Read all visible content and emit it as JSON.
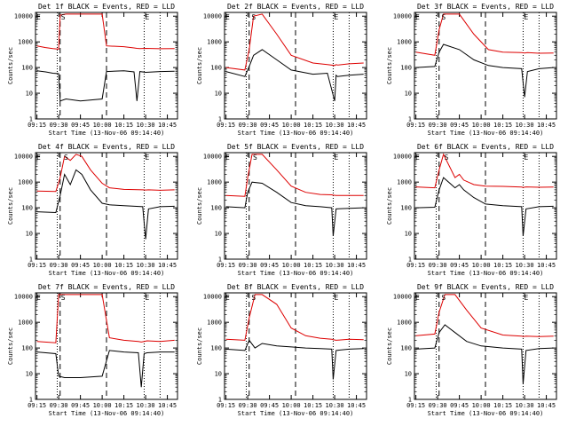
{
  "figure": {
    "common": {
      "title_suffix": "BLACK = Events, RED = LLD",
      "xlabel": "Start Time (13-Nov-06 09:14:40)",
      "ylabel": "Counts/sec",
      "x_tick_labels": [
        "09:15",
        "09:30",
        "09:45",
        "10:00",
        "10:15",
        "10:30",
        "10:45"
      ],
      "y_tick_labels": [
        "1",
        "10",
        "100",
        "1000",
        "10000"
      ],
      "marker_E": "E",
      "marker_S": "S",
      "colors": {
        "events": "#000000",
        "lld": "#dd0000"
      }
    }
  },
  "chart_data": [
    {
      "type": "line",
      "title": "Det 1f BLACK = Events, RED = LLD",
      "xlabel": "Start Time (13-Nov-06 09:14:40)",
      "ylabel": "Counts/sec",
      "y_scale": "log",
      "ylim": [
        1,
        12000
      ],
      "x": [
        "09:15",
        "09:21",
        "09:26",
        "09:30",
        "09:31",
        "09:35",
        "09:45",
        "10:00",
        "10:03",
        "10:15",
        "10:22",
        "10:24",
        "10:26",
        "10:30",
        "10:40",
        "10:50"
      ],
      "series": [
        {
          "name": "Events",
          "color": "#000000",
          "values": [
            75,
            68,
            60,
            58,
            5,
            6,
            5,
            6,
            70,
            75,
            68,
            5,
            70,
            65,
            70,
            72
          ]
        },
        {
          "name": "LLD",
          "color": "#dd0000",
          "values": [
            700,
            600,
            550,
            520,
            11000,
            12000,
            12000,
            12000,
            700,
            650,
            580,
            560,
            550,
            560,
            540,
            550
          ]
        }
      ],
      "vlines": [
        {
          "x": "09:31",
          "style": "dashed"
        },
        {
          "x": "10:03",
          "style": "dashed"
        },
        {
          "x": "09:29",
          "style": "dotted"
        },
        {
          "x": "10:29",
          "style": "dotted"
        },
        {
          "x": "10:40",
          "style": "dotted"
        }
      ],
      "markers": [
        {
          "x": "09:14",
          "label": "E"
        },
        {
          "x": "09:31",
          "label": "S"
        },
        {
          "x": "10:29",
          "label": "E"
        }
      ]
    },
    {
      "type": "line",
      "title": "Det 2f BLACK = Events, RED = LLD",
      "xlabel": "Start Time (13-Nov-06 09:14:40)",
      "ylabel": "Counts/sec",
      "y_scale": "log",
      "ylim": [
        1,
        12000
      ],
      "x": [
        "09:15",
        "09:28",
        "09:31",
        "09:34",
        "09:40",
        "09:50",
        "10:00",
        "10:15",
        "10:25",
        "10:30",
        "10:31",
        "10:32",
        "10:40",
        "10:50"
      ],
      "series": [
        {
          "name": "Events",
          "color": "#000000",
          "values": [
            70,
            45,
            110,
            300,
            500,
            200,
            80,
            55,
            60,
            5,
            50,
            45,
            50,
            55
          ]
        },
        {
          "name": "LLD",
          "color": "#dd0000",
          "values": [
            100,
            80,
            500,
            10000,
            12000,
            2000,
            300,
            150,
            130,
            120,
            130,
            125,
            140,
            150
          ]
        }
      ],
      "vlines": [
        {
          "x": "09:31",
          "style": "dashed"
        },
        {
          "x": "10:03",
          "style": "dashed"
        },
        {
          "x": "09:29",
          "style": "dotted"
        },
        {
          "x": "10:29",
          "style": "dotted"
        },
        {
          "x": "10:40",
          "style": "dotted"
        }
      ],
      "markers": [
        {
          "x": "09:14",
          "label": "E"
        },
        {
          "x": "09:32",
          "label": "S"
        },
        {
          "x": "10:29",
          "label": "E"
        }
      ]
    },
    {
      "type": "line",
      "title": "Det 3f BLACK = Events, RED = LLD",
      "xlabel": "Start Time (13-Nov-06 09:14:40)",
      "ylabel": "Counts/sec",
      "y_scale": "log",
      "ylim": [
        1,
        12000
      ],
      "x": [
        "09:15",
        "09:28",
        "09:31",
        "09:34",
        "09:45",
        "09:55",
        "10:05",
        "10:15",
        "10:28",
        "10:30",
        "10:32",
        "10:40",
        "10:50"
      ],
      "series": [
        {
          "name": "Events",
          "color": "#000000",
          "values": [
            100,
            110,
            400,
            800,
            500,
            200,
            120,
            100,
            90,
            7,
            70,
            90,
            100
          ]
        },
        {
          "name": "LLD",
          "color": "#dd0000",
          "values": [
            400,
            300,
            3000,
            12000,
            12000,
            2000,
            500,
            400,
            380,
            370,
            380,
            360,
            370
          ]
        }
      ],
      "vlines": [
        {
          "x": "09:31",
          "style": "dashed"
        },
        {
          "x": "10:03",
          "style": "dashed"
        },
        {
          "x": "09:29",
          "style": "dotted"
        },
        {
          "x": "10:29",
          "style": "dotted"
        },
        {
          "x": "10:40",
          "style": "dotted"
        }
      ],
      "markers": [
        {
          "x": "09:14",
          "label": "E"
        },
        {
          "x": "09:32",
          "label": "S"
        },
        {
          "x": "10:29",
          "label": "E"
        }
      ]
    },
    {
      "type": "line",
      "title": "Det 4f BLACK = Events, RED = LLD",
      "xlabel": "Start Time (13-Nov-06 09:14:40)",
      "ylabel": "Counts/sec",
      "y_scale": "log",
      "ylim": [
        1,
        12000
      ],
      "x": [
        "09:15",
        "09:28",
        "09:31",
        "09:34",
        "09:38",
        "09:42",
        "09:46",
        "09:52",
        "10:00",
        "10:05",
        "10:15",
        "10:28",
        "10:30",
        "10:32",
        "10:40",
        "10:50"
      ],
      "series": [
        {
          "name": "Events",
          "color": "#000000",
          "values": [
            70,
            65,
            300,
            2000,
            800,
            3000,
            2000,
            500,
            150,
            130,
            120,
            110,
            6,
            90,
            110,
            115
          ]
        },
        {
          "name": "LLD",
          "color": "#dd0000",
          "values": [
            450,
            430,
            1500,
            10000,
            7000,
            12000,
            10000,
            3000,
            900,
            600,
            520,
            500,
            490,
            500,
            480,
            500
          ]
        }
      ],
      "vlines": [
        {
          "x": "09:31",
          "style": "dashed"
        },
        {
          "x": "10:03",
          "style": "dashed"
        },
        {
          "x": "09:29",
          "style": "dotted"
        },
        {
          "x": "10:29",
          "style": "dotted"
        },
        {
          "x": "10:40",
          "style": "dotted"
        }
      ],
      "markers": [
        {
          "x": "09:14",
          "label": "E"
        },
        {
          "x": "09:33",
          "label": "S"
        },
        {
          "x": "10:29",
          "label": "E"
        }
      ]
    },
    {
      "type": "line",
      "title": "Det 5f BLACK = Events, RED = LLD",
      "xlabel": "Start Time (13-Nov-06 09:14:40)",
      "ylabel": "Counts/sec",
      "y_scale": "log",
      "ylim": [
        1,
        12000
      ],
      "x": [
        "09:15",
        "09:28",
        "09:30",
        "09:33",
        "09:40",
        "09:50",
        "10:00",
        "10:10",
        "10:20",
        "10:28",
        "10:29",
        "10:31",
        "10:40",
        "10:50"
      ],
      "series": [
        {
          "name": "Events",
          "color": "#000000",
          "values": [
            110,
            100,
            400,
            1000,
            900,
            400,
            160,
            120,
            110,
            100,
            8,
            90,
            95,
            100
          ]
        },
        {
          "name": "LLD",
          "color": "#dd0000",
          "values": [
            300,
            280,
            1500,
            12000,
            12000,
            3000,
            700,
            400,
            330,
            320,
            310,
            300,
            300,
            300
          ]
        }
      ],
      "vlines": [
        {
          "x": "09:31",
          "style": "dashed"
        },
        {
          "x": "10:03",
          "style": "dashed"
        },
        {
          "x": "09:29",
          "style": "dotted"
        },
        {
          "x": "10:29",
          "style": "dotted"
        },
        {
          "x": "10:40",
          "style": "dotted"
        }
      ],
      "markers": [
        {
          "x": "09:14",
          "label": "E"
        },
        {
          "x": "09:33",
          "label": "S"
        },
        {
          "x": "10:29",
          "label": "E"
        }
      ]
    },
    {
      "type": "line",
      "title": "Det 6f BLACK = Events, RED = LLD",
      "xlabel": "Start Time (13-Nov-06 09:14:40)",
      "ylabel": "Counts/sec",
      "y_scale": "log",
      "ylim": [
        1,
        12000
      ],
      "x": [
        "09:15",
        "09:28",
        "09:31",
        "09:34",
        "09:42",
        "09:45",
        "09:48",
        "09:55",
        "10:03",
        "10:15",
        "10:28",
        "10:29",
        "10:31",
        "10:40",
        "10:50"
      ],
      "series": [
        {
          "name": "Events",
          "color": "#000000",
          "values": [
            100,
            105,
            500,
            1500,
            600,
            800,
            500,
            250,
            140,
            120,
            110,
            8,
            90,
            110,
            115
          ]
        },
        {
          "name": "LLD",
          "color": "#dd0000",
          "values": [
            650,
            600,
            3000,
            12000,
            1500,
            2000,
            1200,
            800,
            700,
            680,
            640,
            620,
            650,
            630,
            640
          ]
        }
      ],
      "vlines": [
        {
          "x": "09:31",
          "style": "dashed"
        },
        {
          "x": "10:03",
          "style": "dashed"
        },
        {
          "x": "09:29",
          "style": "dotted"
        },
        {
          "x": "10:29",
          "style": "dotted"
        },
        {
          "x": "10:40",
          "style": "dotted"
        }
      ],
      "markers": [
        {
          "x": "09:14",
          "label": "E"
        },
        {
          "x": "09:34",
          "label": "S"
        },
        {
          "x": "10:29",
          "label": "E"
        }
      ]
    },
    {
      "type": "line",
      "title": "Det 7f BLACK = Events, RED = LLD",
      "xlabel": "Start Time (13-Nov-06 09:14:40)",
      "ylabel": "Counts/sec",
      "y_scale": "log",
      "ylim": [
        1,
        12000
      ],
      "x": [
        "09:15",
        "09:28",
        "09:30",
        "09:34",
        "09:45",
        "10:00",
        "10:05",
        "10:15",
        "10:25",
        "10:27",
        "10:29",
        "10:31",
        "10:40",
        "10:50"
      ],
      "series": [
        {
          "name": "Events",
          "color": "#000000",
          "values": [
            70,
            60,
            8,
            7,
            7,
            8,
            80,
            70,
            65,
            3,
            60,
            65,
            70,
            70
          ]
        },
        {
          "name": "LLD",
          "color": "#dd0000",
          "values": [
            180,
            160,
            12000,
            12000,
            12000,
            12000,
            250,
            200,
            180,
            170,
            180,
            190,
            180,
            200
          ]
        }
      ],
      "vlines": [
        {
          "x": "09:31",
          "style": "dashed"
        },
        {
          "x": "10:03",
          "style": "dashed"
        },
        {
          "x": "09:29",
          "style": "dotted"
        },
        {
          "x": "10:29",
          "style": "dotted"
        },
        {
          "x": "10:40",
          "style": "dotted"
        }
      ],
      "markers": [
        {
          "x": "09:14",
          "label": "E"
        },
        {
          "x": "09:31",
          "label": "S"
        },
        {
          "x": "10:29",
          "label": "E"
        }
      ]
    },
    {
      "type": "line",
      "title": "Det 8f BLACK = Events, RED = LLD",
      "xlabel": "Start Time (13-Nov-06 09:14:40)",
      "ylabel": "Counts/sec",
      "y_scale": "log",
      "ylim": [
        1,
        12000
      ],
      "x": [
        "09:15",
        "09:28",
        "09:31",
        "09:35",
        "09:40",
        "09:50",
        "10:00",
        "10:10",
        "10:20",
        "10:28",
        "10:29",
        "10:31",
        "10:40",
        "10:50"
      ],
      "series": [
        {
          "name": "Events",
          "color": "#000000",
          "values": [
            90,
            80,
            200,
            100,
            150,
            120,
            110,
            100,
            95,
            90,
            6,
            80,
            90,
            95
          ]
        },
        {
          "name": "LLD",
          "color": "#dd0000",
          "values": [
            220,
            200,
            1500,
            12000,
            12000,
            5000,
            600,
            300,
            240,
            220,
            210,
            200,
            220,
            210
          ]
        }
      ],
      "vlines": [
        {
          "x": "09:31",
          "style": "dashed"
        },
        {
          "x": "10:03",
          "style": "dashed"
        },
        {
          "x": "09:29",
          "style": "dotted"
        },
        {
          "x": "10:29",
          "style": "dotted"
        },
        {
          "x": "10:40",
          "style": "dotted"
        }
      ],
      "markers": [
        {
          "x": "09:14",
          "label": "E"
        },
        {
          "x": "09:32",
          "label": "S"
        },
        {
          "x": "10:29",
          "label": "E"
        }
      ]
    },
    {
      "type": "line",
      "title": "Det 9f BLACK = Events, RED = LLD",
      "xlabel": "Start Time (13-Nov-06 09:14:40)",
      "ylabel": "Counts/sec",
      "y_scale": "log",
      "ylim": [
        1,
        12000
      ],
      "x": [
        "09:15",
        "09:28",
        "09:31",
        "09:35",
        "09:42",
        "09:50",
        "10:00",
        "10:15",
        "10:28",
        "10:29",
        "10:31",
        "10:40",
        "10:50"
      ],
      "series": [
        {
          "name": "Events",
          "color": "#000000",
          "values": [
            90,
            100,
            400,
            800,
            400,
            180,
            120,
            100,
            90,
            4,
            80,
            95,
            100
          ]
        },
        {
          "name": "LLD",
          "color": "#dd0000",
          "values": [
            300,
            350,
            2500,
            12000,
            12000,
            3000,
            600,
            320,
            290,
            280,
            290,
            280,
            290
          ]
        }
      ],
      "vlines": [
        {
          "x": "09:31",
          "style": "dashed"
        },
        {
          "x": "10:03",
          "style": "dashed"
        },
        {
          "x": "09:29",
          "style": "dotted"
        },
        {
          "x": "10:29",
          "style": "dotted"
        },
        {
          "x": "10:40",
          "style": "dotted"
        }
      ],
      "markers": [
        {
          "x": "09:14",
          "label": "E"
        },
        {
          "x": "09:32",
          "label": "S"
        },
        {
          "x": "10:29",
          "label": "E"
        }
      ]
    }
  ]
}
